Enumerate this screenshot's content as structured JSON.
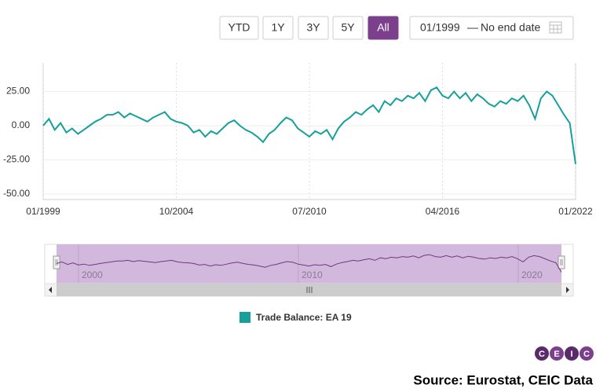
{
  "range_buttons": [
    "YTD",
    "1Y",
    "3Y",
    "5Y",
    "All"
  ],
  "selected_range": "All",
  "date_range": {
    "start": "01/1999",
    "separator": "—",
    "end": "No end date"
  },
  "chart_data": {
    "type": "line",
    "x": [
      "01/1999",
      "04/1999",
      "07/1999",
      "10/1999",
      "01/2000",
      "04/2000",
      "07/2000",
      "10/2000",
      "01/2001",
      "04/2001",
      "07/2001",
      "10/2001",
      "01/2002",
      "04/2002",
      "07/2002",
      "10/2002",
      "01/2003",
      "04/2003",
      "07/2003",
      "10/2003",
      "01/2004",
      "04/2004",
      "07/2004",
      "10/2004",
      "01/2005",
      "04/2005",
      "07/2005",
      "10/2005",
      "01/2006",
      "04/2006",
      "07/2006",
      "10/2006",
      "01/2007",
      "04/2007",
      "07/2007",
      "10/2007",
      "01/2008",
      "04/2008",
      "07/2008",
      "10/2008",
      "01/2009",
      "04/2009",
      "07/2009",
      "10/2009",
      "01/2010",
      "04/2010",
      "07/2010",
      "10/2010",
      "01/2011",
      "04/2011",
      "07/2011",
      "10/2011",
      "01/2012",
      "04/2012",
      "07/2012",
      "10/2012",
      "01/2013",
      "04/2013",
      "07/2013",
      "10/2013",
      "01/2014",
      "04/2014",
      "07/2014",
      "10/2014",
      "01/2015",
      "04/2015",
      "07/2015",
      "10/2015",
      "01/2016",
      "04/2016",
      "07/2016",
      "10/2016",
      "01/2017",
      "04/2017",
      "07/2017",
      "10/2017",
      "01/2018",
      "04/2018",
      "07/2018",
      "10/2018",
      "01/2019",
      "04/2019",
      "07/2019",
      "10/2019",
      "01/2020",
      "04/2020",
      "07/2020",
      "10/2020",
      "01/2021",
      "04/2021",
      "07/2021",
      "10/2021",
      "01/2022"
    ],
    "series": [
      {
        "name": "Trade Balance: EA 19",
        "color": "#16a09c",
        "values": [
          0,
          5,
          -3,
          2,
          -5,
          -2,
          -6,
          -3,
          0,
          3,
          5,
          8,
          8,
          10,
          6,
          9,
          7,
          5,
          3,
          6,
          8,
          10,
          5,
          3,
          2,
          0,
          -5,
          -3,
          -8,
          -4,
          -6,
          -2,
          2,
          4,
          0,
          -3,
          -5,
          -8,
          -12,
          -6,
          -3,
          2,
          6,
          4,
          -2,
          -5,
          -8,
          -4,
          -6,
          -3,
          -10,
          -2,
          3,
          6,
          10,
          8,
          12,
          15,
          10,
          18,
          15,
          20,
          18,
          22,
          20,
          24,
          18,
          26,
          28,
          22,
          20,
          25,
          20,
          24,
          18,
          23,
          20,
          16,
          14,
          18,
          16,
          20,
          18,
          22,
          15,
          5,
          20,
          25,
          22,
          15,
          8,
          2,
          -28
        ]
      }
    ],
    "xticks": [
      "01/1999",
      "10/2004",
      "07/2010",
      "04/2016",
      "01/2022"
    ],
    "ylim": [
      -54,
      46
    ],
    "yticks": [
      {
        "value": 25,
        "label": "25.00"
      },
      {
        "value": 0,
        "label": "0.00"
      },
      {
        "value": -25,
        "label": "-25.00"
      },
      {
        "value": -50,
        "label": "-50.00"
      }
    ],
    "grid": true,
    "navigator_labels": [
      "2000",
      "2010",
      "2020"
    ],
    "navigator_color": "#6b3a7d"
  },
  "logo": [
    "C",
    "E",
    "I",
    "C"
  ],
  "source": "Source: Eurostat, CEIC Data"
}
